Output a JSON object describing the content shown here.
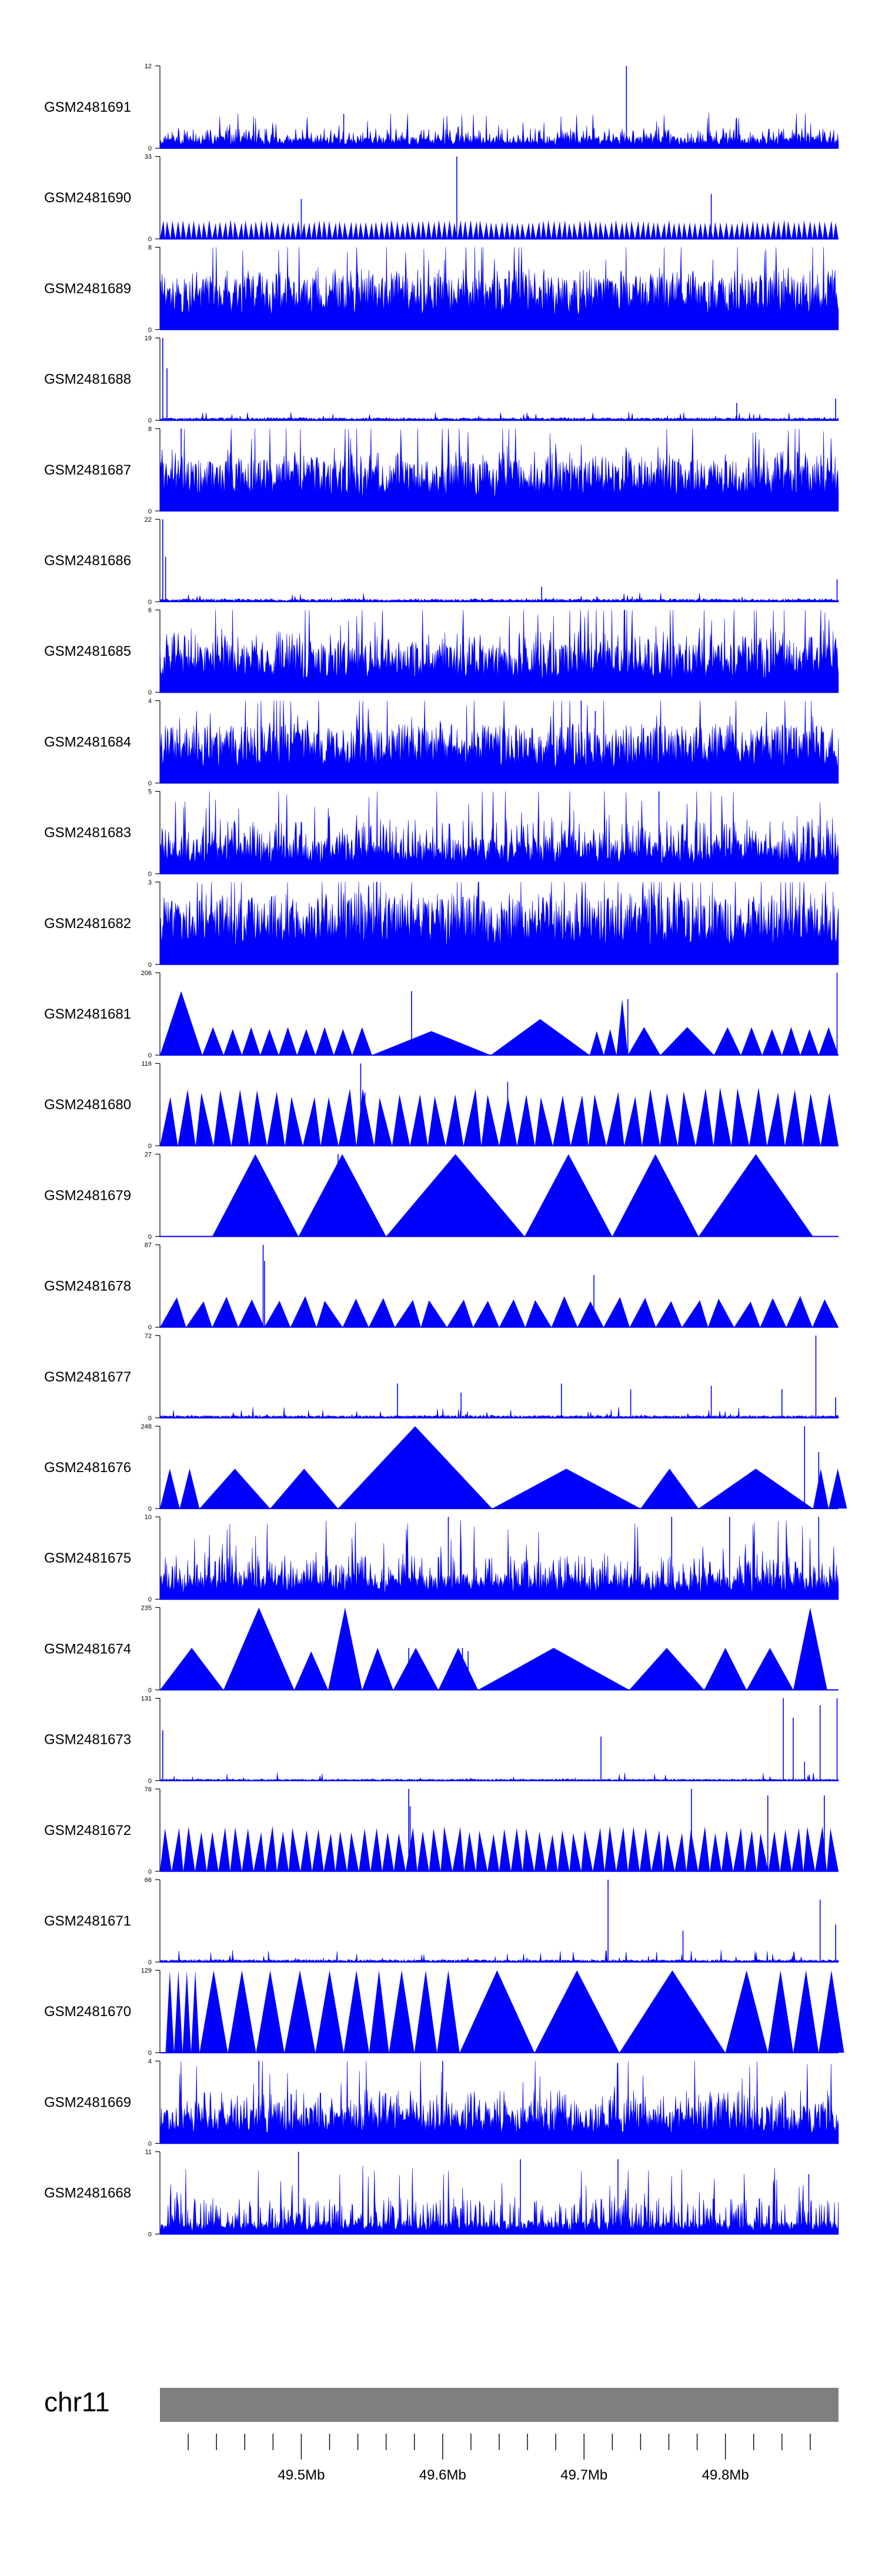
{
  "chart_data": {
    "type": "area",
    "description_free": true,
    "region": {
      "chromosome": "chr11",
      "start_mb": 49.4,
      "end_mb": 49.88
    },
    "x_axis": {
      "major_ticks": [
        49.5,
        49.6,
        49.7,
        49.8
      ],
      "major_tick_labels": [
        "49.5Mb",
        "49.6Mb",
        "49.7Mb",
        "49.8Mb"
      ],
      "minor_tick_step_mb": 0.02
    },
    "tracks": [
      {
        "name": "GSM2481691",
        "ymin": 0,
        "ymax": 12,
        "ymin_label": "0",
        "ymax_label": "12",
        "style": "dense",
        "baseline": 0.5,
        "noise": 3.0,
        "spikes": [
          {
            "x": 49.73,
            "v": 12
          },
          {
            "x": 49.53,
            "v": 5
          }
        ],
        "seed": 11
      },
      {
        "name": "GSM2481690",
        "ymin": 0,
        "ymax": 33,
        "ymin_label": "0",
        "ymax_label": "33",
        "style": "sawtooth",
        "tri_count": 130,
        "tri_height": 7,
        "spikes": [
          {
            "x": 49.61,
            "v": 33
          },
          {
            "x": 49.5,
            "v": 16
          },
          {
            "x": 49.79,
            "v": 18
          }
        ],
        "seed": 12
      },
      {
        "name": "GSM2481689",
        "ymin": 0,
        "ymax": 8,
        "ymin_label": "0",
        "ymax_label": "8",
        "style": "dense",
        "baseline": 1.5,
        "noise": 5.5,
        "spikes": [],
        "seed": 13
      },
      {
        "name": "GSM2481688",
        "ymin": 0,
        "ymax": 19,
        "ymin_label": "0",
        "ymax_label": "19",
        "style": "sparse",
        "baseline": 0.4,
        "noise": 1.2,
        "spikes": [
          {
            "x": 49.402,
            "v": 19
          },
          {
            "x": 49.405,
            "v": 12
          },
          {
            "x": 49.808,
            "v": 4
          },
          {
            "x": 49.878,
            "v": 5
          }
        ],
        "seed": 14
      },
      {
        "name": "GSM2481687",
        "ymin": 0,
        "ymax": 8,
        "ymin_label": "0",
        "ymax_label": "8",
        "style": "dense",
        "baseline": 1.4,
        "noise": 5.5,
        "spikes": [
          {
            "x": 49.415,
            "v": 8
          }
        ],
        "seed": 15
      },
      {
        "name": "GSM2481686",
        "ymin": 0,
        "ymax": 22,
        "ymin_label": "0",
        "ymax_label": "22",
        "style": "sparse",
        "baseline": 0.5,
        "noise": 1.6,
        "spikes": [
          {
            "x": 49.402,
            "v": 22
          },
          {
            "x": 49.404,
            "v": 12
          },
          {
            "x": 49.879,
            "v": 6
          },
          {
            "x": 49.67,
            "v": 4
          }
        ],
        "seed": 16
      },
      {
        "name": "GSM2481685",
        "ymin": 0,
        "ymax": 6,
        "ymin_label": "0",
        "ymax_label": "6",
        "style": "dense",
        "baseline": 1.0,
        "noise": 4.3,
        "spikes": [],
        "seed": 17
      },
      {
        "name": "GSM2481684",
        "ymin": 0,
        "ymax": 4,
        "ymin_label": "0",
        "ymax_label": "4",
        "style": "dense",
        "baseline": 0.8,
        "noise": 2.6,
        "spikes": [
          {
            "x": 49.698,
            "v": 4
          },
          {
            "x": 49.708,
            "v": 3.5
          }
        ],
        "seed": 18
      },
      {
        "name": "GSM2481683",
        "ymin": 0,
        "ymax": 5,
        "ymin_label": "0",
        "ymax_label": "5",
        "style": "dense",
        "baseline": 0.6,
        "noise": 3.4,
        "spikes": [
          {
            "x": 49.753,
            "v": 5
          }
        ],
        "seed": 19
      },
      {
        "name": "GSM2481682",
        "ymin": 0,
        "ymax": 3,
        "ymin_label": "0",
        "ymax_label": "3",
        "style": "dense",
        "baseline": 0.7,
        "noise": 2.4,
        "spikes": [],
        "seed": 20
      },
      {
        "name": "GSM2481681",
        "ymin": 0,
        "ymax": 206,
        "ymin_label": "0",
        "ymax_label": "206",
        "style": "triangles",
        "triangles": [
          [
            49.4,
            49.43,
            160
          ],
          [
            49.43,
            49.445,
            70
          ],
          [
            49.445,
            49.458,
            65
          ],
          [
            49.458,
            49.471,
            70
          ],
          [
            49.471,
            49.484,
            65
          ],
          [
            49.484,
            49.497,
            70
          ],
          [
            49.497,
            49.51,
            65
          ],
          [
            49.51,
            49.523,
            70
          ],
          [
            49.523,
            49.536,
            65
          ],
          [
            49.536,
            49.55,
            70
          ],
          [
            49.55,
            49.634,
            60
          ],
          [
            49.634,
            49.704,
            90
          ],
          [
            49.704,
            49.714,
            60
          ],
          [
            49.714,
            49.723,
            65
          ],
          [
            49.723,
            49.731,
            140
          ],
          [
            49.731,
            49.754,
            70
          ],
          [
            49.754,
            49.792,
            70
          ],
          [
            49.792,
            49.811,
            70
          ],
          [
            49.811,
            49.826,
            70
          ],
          [
            49.826,
            49.84,
            65
          ],
          [
            49.84,
            49.853,
            70
          ],
          [
            49.853,
            49.866,
            65
          ],
          [
            49.866,
            49.88,
            70
          ]
        ],
        "spikes": [
          {
            "x": 49.578,
            "v": 160
          },
          {
            "x": 49.879,
            "v": 206
          },
          {
            "x": 49.731,
            "v": 140
          }
        ],
        "seed": 21
      },
      {
        "name": "GSM2481680",
        "ymin": 0,
        "ymax": 116,
        "ymin_label": "0",
        "ymax_label": "116",
        "style": "sawtooth",
        "tri_count": 38,
        "tri_height": 75,
        "spikes": [
          {
            "x": 49.542,
            "v": 116
          },
          {
            "x": 49.646,
            "v": 90
          },
          {
            "x": 49.545,
            "v": 75
          }
        ],
        "seed": 22
      },
      {
        "name": "GSM2481679",
        "ymin": 0,
        "ymax": 27,
        "ymin_label": "0",
        "ymax_label": "27",
        "style": "triangles",
        "triangles": [
          [
            49.437,
            49.498,
            27
          ],
          [
            49.498,
            49.56,
            27
          ],
          [
            49.56,
            49.658,
            27
          ],
          [
            49.658,
            49.72,
            27
          ],
          [
            49.72,
            49.781,
            27
          ],
          [
            49.781,
            49.862,
            27
          ]
        ],
        "spikes": [
          {
            "x": 49.526,
            "v": 27
          }
        ],
        "seed": 23
      },
      {
        "name": "GSM2481678",
        "ymin": 0,
        "ymax": 87,
        "ymin_label": "0",
        "ymax_label": "87",
        "style": "sawtooth",
        "tri_count": 26,
        "tri_height": 30,
        "spikes": [
          {
            "x": 49.473,
            "v": 87
          },
          {
            "x": 49.474,
            "v": 70
          },
          {
            "x": 49.707,
            "v": 55
          }
        ],
        "seed": 24
      },
      {
        "name": "GSM2481677",
        "ymin": 0,
        "ymax": 72,
        "ymin_label": "0",
        "ymax_label": "72",
        "style": "sparse",
        "baseline": 1,
        "noise": 6,
        "spikes": [
          {
            "x": 49.864,
            "v": 72
          },
          {
            "x": 49.568,
            "v": 30
          },
          {
            "x": 49.613,
            "v": 22
          },
          {
            "x": 49.684,
            "v": 30
          },
          {
            "x": 49.733,
            "v": 25
          },
          {
            "x": 49.79,
            "v": 28
          },
          {
            "x": 49.84,
            "v": 25
          },
          {
            "x": 49.878,
            "v": 18
          }
        ],
        "seed": 25
      },
      {
        "name": "GSM2481676",
        "ymin": 0,
        "ymax": 248,
        "ymin_label": "0",
        "ymax_label": "248",
        "style": "triangles",
        "triangles": [
          [
            49.4,
            49.414,
            120
          ],
          [
            49.414,
            49.428,
            120
          ],
          [
            49.428,
            49.478,
            120
          ],
          [
            49.478,
            49.526,
            120
          ],
          [
            49.526,
            49.635,
            248
          ],
          [
            49.635,
            49.74,
            120
          ],
          [
            49.74,
            49.781,
            120
          ],
          [
            49.781,
            49.862,
            120
          ],
          [
            49.862,
            49.873,
            120
          ],
          [
            49.873,
            49.886,
            120
          ]
        ],
        "spikes": [
          {
            "x": 49.856,
            "v": 248
          },
          {
            "x": 49.866,
            "v": 170
          }
        ],
        "seed": 26
      },
      {
        "name": "GSM2481675",
        "ymin": 0,
        "ymax": 10,
        "ymin_label": "0",
        "ymax_label": "10",
        "style": "dense",
        "baseline": 0.9,
        "noise": 5.5,
        "spikes": [
          {
            "x": 49.604,
            "v": 10
          },
          {
            "x": 49.762,
            "v": 10
          },
          {
            "x": 49.803,
            "v": 10
          },
          {
            "x": 49.866,
            "v": 10
          }
        ],
        "seed": 27
      },
      {
        "name": "GSM2481674",
        "ymin": 0,
        "ymax": 235,
        "ymin_label": "0",
        "ymax_label": "235",
        "style": "triangles",
        "triangles": [
          [
            49.4,
            49.445,
            120
          ],
          [
            49.445,
            49.495,
            235
          ],
          [
            49.495,
            49.519,
            110
          ],
          [
            49.519,
            49.543,
            235
          ],
          [
            49.543,
            49.565,
            120
          ],
          [
            49.565,
            49.597,
            120
          ],
          [
            49.597,
            49.625,
            120
          ],
          [
            49.625,
            49.732,
            120
          ],
          [
            49.732,
            49.785,
            120
          ],
          [
            49.785,
            49.815,
            120
          ],
          [
            49.815,
            49.848,
            120
          ],
          [
            49.848,
            49.872,
            235
          ]
        ],
        "spikes": [
          {
            "x": 49.535,
            "v": 110
          },
          {
            "x": 49.576,
            "v": 120
          },
          {
            "x": 49.614,
            "v": 120
          },
          {
            "x": 49.618,
            "v": 110
          }
        ],
        "seed": 28
      },
      {
        "name": "GSM2481673",
        "ymin": 0,
        "ymax": 131,
        "ymin_label": "0",
        "ymax_label": "131",
        "style": "sparse",
        "baseline": 1,
        "noise": 8,
        "spikes": [
          {
            "x": 49.402,
            "v": 80
          },
          {
            "x": 49.712,
            "v": 70
          },
          {
            "x": 49.841,
            "v": 131
          },
          {
            "x": 49.848,
            "v": 100
          },
          {
            "x": 49.856,
            "v": 30
          },
          {
            "x": 49.867,
            "v": 120
          },
          {
            "x": 49.879,
            "v": 131
          }
        ],
        "seed": 29
      },
      {
        "name": "GSM2481672",
        "ymin": 0,
        "ymax": 76,
        "ymin_label": "0",
        "ymax_label": "76",
        "style": "sawtooth",
        "tri_count": 58,
        "tri_height": 38,
        "spikes": [
          {
            "x": 49.576,
            "v": 76
          },
          {
            "x": 49.577,
            "v": 60
          },
          {
            "x": 49.776,
            "v": 76
          },
          {
            "x": 49.83,
            "v": 70
          },
          {
            "x": 49.87,
            "v": 70
          }
        ],
        "seed": 30
      },
      {
        "name": "GSM2481671",
        "ymin": 0,
        "ymax": 66,
        "ymin_label": "0",
        "ymax_label": "66",
        "style": "sparse",
        "baseline": 0.8,
        "noise": 6,
        "spikes": [
          {
            "x": 49.717,
            "v": 66
          },
          {
            "x": 49.867,
            "v": 50
          },
          {
            "x": 49.77,
            "v": 25
          },
          {
            "x": 49.878,
            "v": 30
          }
        ],
        "seed": 31
      },
      {
        "name": "GSM2481670",
        "ymin": 0,
        "ymax": 129,
        "ymin_label": "0",
        "ymax_label": "129",
        "style": "triangles",
        "triangles": [
          [
            49.404,
            49.41,
            129
          ],
          [
            49.41,
            49.416,
            129
          ],
          [
            49.416,
            49.422,
            129
          ],
          [
            49.422,
            49.428,
            129
          ],
          [
            49.428,
            49.448,
            129
          ],
          [
            49.448,
            49.468,
            129
          ],
          [
            49.468,
            49.488,
            129
          ],
          [
            49.488,
            49.51,
            129
          ],
          [
            49.51,
            49.53,
            129
          ],
          [
            49.53,
            49.548,
            129
          ],
          [
            49.548,
            49.562,
            129
          ],
          [
            49.562,
            49.58,
            129
          ],
          [
            49.58,
            49.596,
            129
          ],
          [
            49.596,
            49.612,
            129
          ],
          [
            49.612,
            49.665,
            129
          ],
          [
            49.665,
            49.725,
            129
          ],
          [
            49.725,
            49.8,
            129
          ],
          [
            49.8,
            49.83,
            129
          ],
          [
            49.83,
            49.848,
            129
          ],
          [
            49.848,
            49.866,
            129
          ],
          [
            49.866,
            49.884,
            129
          ]
        ],
        "spikes": [
          {
            "x": 49.625,
            "v": 60
          }
        ],
        "seed": 32
      },
      {
        "name": "GSM2481669",
        "ymin": 0,
        "ymax": 4,
        "ymin_label": "0",
        "ymax_label": "4",
        "style": "dense",
        "baseline": 0.5,
        "noise": 2.6,
        "spikes": [
          {
            "x": 49.47,
            "v": 4
          },
          {
            "x": 49.6,
            "v": 4
          }
        ],
        "seed": 33
      },
      {
        "name": "GSM2481668",
        "ymin": 0,
        "ymax": 11,
        "ymin_label": "0",
        "ymax_label": "11",
        "style": "dense",
        "baseline": 0.5,
        "noise": 5.5,
        "spikes": [
          {
            "x": 49.498,
            "v": 11
          },
          {
            "x": 49.655,
            "v": 10
          },
          {
            "x": 49.724,
            "v": 10
          },
          {
            "x": 49.859,
            "v": 8
          }
        ],
        "seed": 34
      }
    ],
    "ideogram": {
      "label": "chr11",
      "color": "#7f7f7f"
    },
    "colors": {
      "signal": "#0000ff",
      "axis": "#000000",
      "ideogram": "#7f7f7f"
    }
  }
}
